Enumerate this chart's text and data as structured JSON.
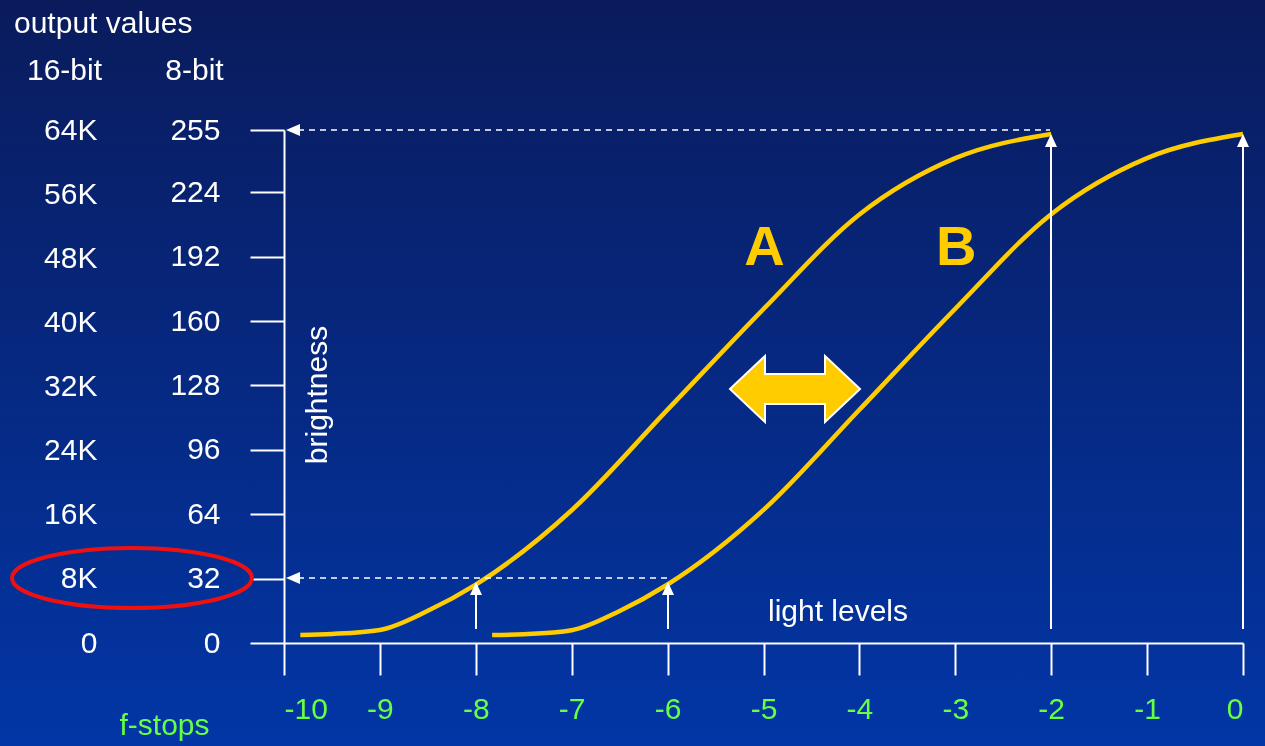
{
  "chart_data": {
    "type": "line",
    "title": "output values",
    "xlabel": "f-stops",
    "ylabel": "8-bit",
    "y2label": "16-bit",
    "annotations": [
      "brightness",
      "light levels"
    ],
    "xlim": [
      -10,
      0
    ],
    "xticks": [
      -10,
      -9,
      -8,
      -7,
      -6,
      -5,
      -4,
      -3,
      -2,
      -1,
      0
    ],
    "ylim": [
      0,
      255
    ],
    "yticks": [
      0,
      32,
      64,
      96,
      128,
      160,
      192,
      224,
      255
    ],
    "y2lim": [
      0,
      64000
    ],
    "y2ticks": [
      0,
      {
        "value": 8000,
        "label": "8K"
      },
      {
        "value": 16000,
        "label": "16K"
      },
      {
        "value": 24000,
        "label": "24K"
      },
      {
        "value": 32000,
        "label": "32K"
      },
      {
        "value": 40000,
        "label": "40K"
      },
      {
        "value": 48000,
        "label": "48K"
      },
      {
        "value": 56000,
        "label": "56K"
      },
      {
        "value": 64000,
        "label": "64K"
      }
    ],
    "series": [
      {
        "name": "A",
        "color": "#ffcc00",
        "x": [
          -9.83,
          -9.5,
          -9,
          -8.5,
          -8,
          -7,
          -6,
          -5,
          -4,
          -3,
          -2
        ],
        "values": [
          4,
          4.5,
          6.5,
          16,
          29,
          66,
          116,
          166,
          213,
          241,
          253
        ]
      },
      {
        "name": "B",
        "color": "#ffcc00",
        "axis": "y2",
        "x": [
          -7.83,
          -7.5,
          -7,
          -6.5,
          -6,
          -5,
          -4,
          -3,
          -2,
          -1,
          0
        ],
        "values": [
          1000,
          1100,
          1600,
          4000,
          7300,
          16600,
          29100,
          41700,
          53500,
          60500,
          63500
        ]
      }
    ]
  }
}
